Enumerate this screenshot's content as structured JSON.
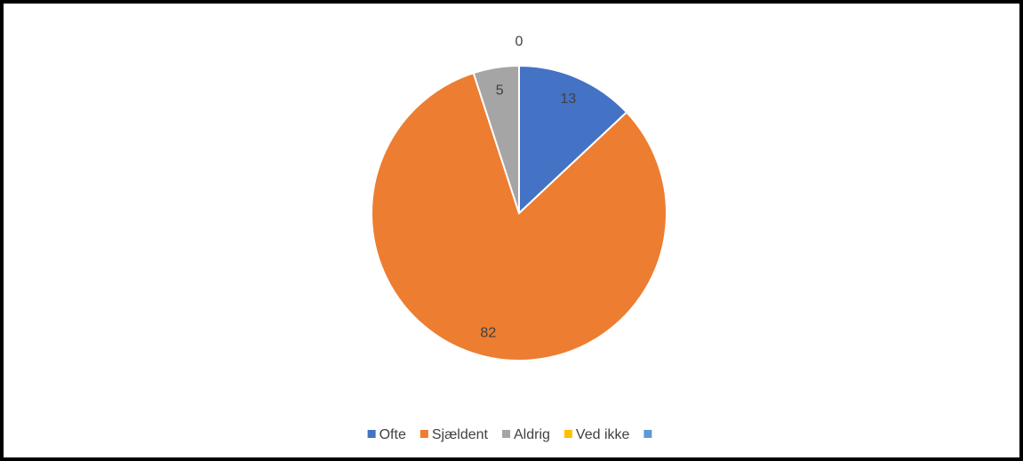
{
  "chart_data": {
    "type": "pie",
    "categories": [
      "Ofte",
      "Sjældent",
      "Aldrig",
      "Ved ikke",
      null
    ],
    "values": [
      13,
      82,
      5,
      0,
      null
    ],
    "colors": [
      "#4472c4",
      "#ed7d31",
      "#a5a5a5",
      "#ffc000",
      "#5b9bd5"
    ],
    "legend": "bottom"
  }
}
